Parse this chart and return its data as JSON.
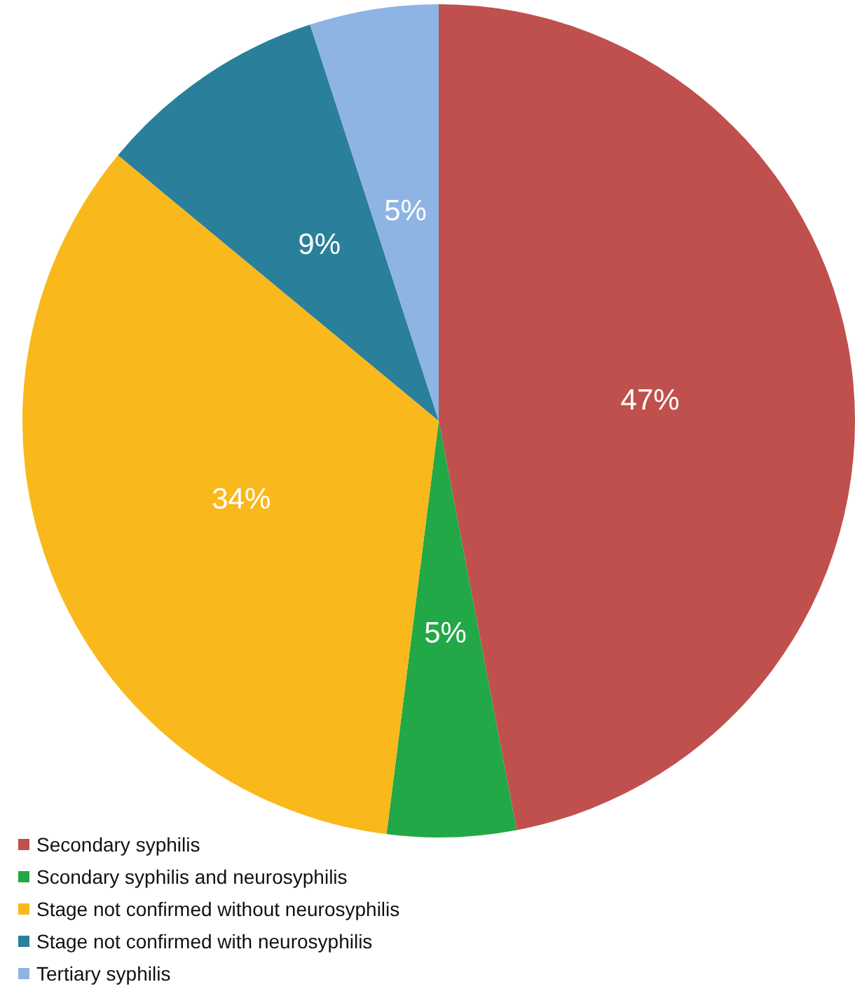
{
  "chart_data": {
    "type": "pie",
    "categories": [
      "Secondary syphilis",
      "Scondary syphilis and neurosyphilis",
      "Stage not confirmed without neurosyphilis",
      "Stage not confirmed with neurosyphilis",
      "Tertiary syphilis"
    ],
    "values": [
      47,
      5,
      34,
      9,
      5
    ],
    "colors": [
      "#c0504d",
      "#22a846",
      "#f9b81b",
      "#2a7f9a",
      "#8eb4e3"
    ],
    "value_labels": [
      "47%",
      "5%",
      "34%",
      "9%",
      "5%"
    ],
    "legend": "bottom left"
  }
}
